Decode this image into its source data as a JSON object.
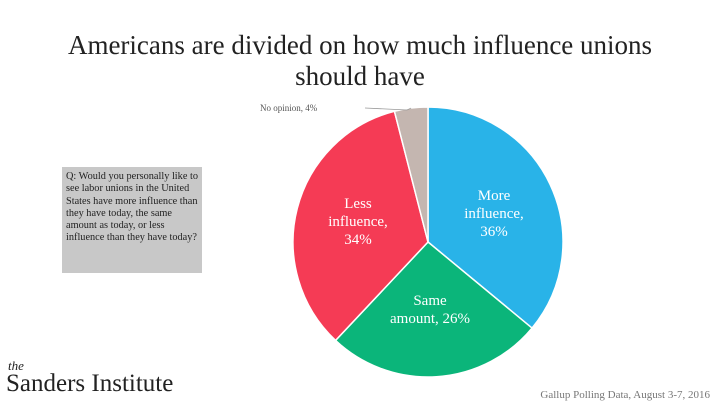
{
  "chart_data": {
    "type": "pie",
    "title": "Americans are divided on how much influence unions should have",
    "values": [
      36,
      26,
      34,
      4
    ],
    "value_labels": [
      "More influence, 36%",
      "Same amount, 26%",
      "Less influence, 34%",
      "No opinion, 4%"
    ],
    "colors": [
      "#29b3e8",
      "#0bb57a",
      "#f53b55",
      "#c4b6b0"
    ]
  },
  "question": "Q: Would you personally like to see labor unions in the United States have more influence than they have today, the same amount as today, or less influence than they have today?",
  "logo": {
    "small": "the",
    "name": "Sanders Institute"
  },
  "source": "Gallup Polling Data, August 3-7, 2016"
}
